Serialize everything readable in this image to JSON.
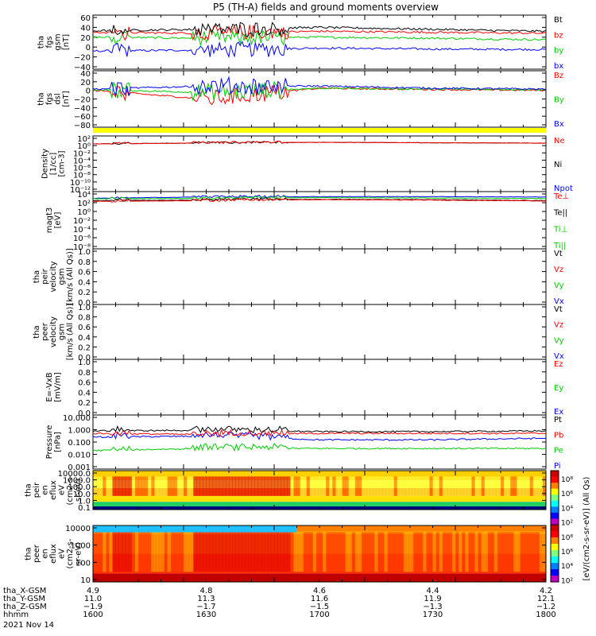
{
  "title": "P5 (TH-A) fields and ground moments overview",
  "date_label": "2021 Nov 14",
  "panels": [
    {
      "id": "fgs_gsm",
      "ylabel": [
        "tha",
        "fgs",
        "gsm",
        "[nT]"
      ],
      "ticks": [
        "60",
        "40",
        "20",
        "0",
        "−20",
        "−40"
      ],
      "legend": [
        {
          "text": "Bt",
          "color": "#000000"
        },
        {
          "text": "bz",
          "color": "#ff0000"
        },
        {
          "text": "by",
          "color": "#00cc00"
        },
        {
          "text": "bx",
          "color": "#0000ff"
        }
      ]
    },
    {
      "id": "fgs_dsl",
      "ylabel": [
        "tha",
        "fgs",
        "dsl",
        "[nT]"
      ],
      "ticks": [
        "40",
        "20",
        "0",
        "−20",
        "−40",
        "−60",
        "−80"
      ],
      "legend": [
        {
          "text": "Bz",
          "color": "#ff0000"
        },
        {
          "text": "By",
          "color": "#00cc00"
        },
        {
          "text": "Bx",
          "color": "#0000ff"
        }
      ]
    },
    {
      "id": "density",
      "ylabel": [
        "Density",
        "[1/cc]",
        "[cm-3]"
      ],
      "ticks": [
        "10²",
        "10⁰",
        "10⁻²",
        "10⁻⁴",
        "10⁻⁶",
        "10⁻⁸",
        "10⁻¹⁰",
        "10⁻¹²"
      ],
      "legend": [
        {
          "text": "Ne",
          "color": "#ff0000"
        },
        {
          "text": "Ni",
          "color": "#000000"
        },
        {
          "text": "Npot",
          "color": "#0000ff"
        }
      ]
    },
    {
      "id": "temperature",
      "ylabel": [
        "magt3",
        "[eV]"
      ],
      "ticks": [
        "10⁴",
        "10²",
        "10⁰",
        "10⁻²",
        "10⁻⁴",
        "10⁻⁶",
        "10⁻⁸"
      ],
      "legend": [
        {
          "text": "Te⊥",
          "color": "#ff0000"
        },
        {
          "text": "Te||",
          "color": "#000000"
        },
        {
          "text": "Ti⊥",
          "color": "#00cc00"
        },
        {
          "text": "Ti||",
          "color": "#00cc00"
        }
      ]
    },
    {
      "id": "peir_velocity",
      "ylabel": [
        "tha",
        "peir",
        "velocity",
        "gsm",
        "[km/s (All Qs)]"
      ],
      "ticks": [
        "1.0",
        "0.8",
        "0.6",
        "0.4",
        "0.2",
        "0.0"
      ],
      "legend": [
        {
          "text": "Vt",
          "color": "#000000"
        },
        {
          "text": "Vz",
          "color": "#ff0000"
        },
        {
          "text": "Vy",
          "color": "#00cc00"
        },
        {
          "text": "Vx",
          "color": "#0000ff"
        }
      ]
    },
    {
      "id": "peer_velocity",
      "ylabel": [
        "tha",
        "peer",
        "velocity",
        "gsm",
        "[km/s (All Qs)]"
      ],
      "ticks": [
        "1.0",
        "0.8",
        "0.6",
        "0.4",
        "0.2",
        "0.0"
      ],
      "legend": [
        {
          "text": "Vt",
          "color": "#000000"
        },
        {
          "text": "Vz",
          "color": "#ff0000"
        },
        {
          "text": "Vy",
          "color": "#00cc00"
        },
        {
          "text": "Vx",
          "color": "#0000ff"
        }
      ]
    },
    {
      "id": "efield",
      "ylabel": [
        "E=-VxB",
        "[mV/m]"
      ],
      "ticks": [
        "1.0",
        "0.8",
        "0.6",
        "0.4",
        "0.2",
        "0.0"
      ],
      "legend": [
        {
          "text": "Ez",
          "color": "#ff0000"
        },
        {
          "text": "Ey",
          "color": "#00cc00"
        },
        {
          "text": "Ex",
          "color": "#0000ff"
        }
      ]
    },
    {
      "id": "pressure",
      "ylabel": [
        "Pressure",
        "[nPa]"
      ],
      "ticks": [
        "10.000",
        "1.000",
        "0.100",
        "0.010",
        "0.001"
      ],
      "legend": [
        {
          "text": "Pt",
          "color": "#000000"
        },
        {
          "text": "Pb",
          "color": "#ff0000"
        },
        {
          "text": "Pe",
          "color": "#00cc00"
        },
        {
          "text": "Pi",
          "color": "#0000ff"
        }
      ]
    },
    {
      "id": "peir_spec",
      "ylabel": [
        "tha",
        "peir",
        "en",
        "eflux",
        "eV",
        "(cm2-s-",
        "sr-eV)"
      ],
      "ticks": [
        "10000.0",
        "1000.0",
        "100.0",
        "10.0",
        "1.0",
        "0.1"
      ],
      "legend": []
    },
    {
      "id": "peer_spec",
      "ylabel": [
        "tha",
        "peer",
        "en",
        "eflux",
        "eV",
        "(cm2-s-",
        "sr-eV)"
      ],
      "ticks": [
        "10000",
        "1000",
        "100",
        "10"
      ],
      "legend": []
    }
  ],
  "colorbar": {
    "ticks": [
      "10⁸",
      "10⁶",
      "10⁴",
      "10²",
      "10⁸",
      "10⁶",
      "10⁴",
      "10²"
    ],
    "label": "[eV/(cm2-s-sr-eV)] (All Qs)"
  },
  "x_axis": {
    "row_labels": [
      "tha_X-GSM",
      "tha_Y-GSM",
      "tha_Z-GSM",
      "hhmm"
    ],
    "columns": [
      [
        "4.9",
        "11.0",
        "−1.9",
        "1600"
      ],
      [
        "4.8",
        "11.3",
        "−1.7",
        "1630"
      ],
      [
        "4.6",
        "11.6",
        "−1.5",
        "1700"
      ],
      [
        "4.4",
        "11.9",
        "−1.3",
        "1730"
      ],
      [
        "4.2",
        "12.1",
        "−1.2",
        "1800"
      ]
    ]
  },
  "chart_data": {
    "type": "line",
    "title": "P5 (TH-A) fields and ground moments overview",
    "x": [
      "1600",
      "1630",
      "1700",
      "1730",
      "1800"
    ],
    "xlabel": "hhmm",
    "grid": false,
    "legend_placement": "right",
    "fgs_gsm": {
      "ylim": [
        -40,
        60
      ],
      "series": [
        {
          "name": "Bt",
          "values": [
            33,
            36,
            40,
            36,
            32
          ]
        },
        {
          "name": "bz",
          "values": [
            30,
            28,
            32,
            30,
            28
          ]
        },
        {
          "name": "by",
          "values": [
            20,
            18,
            20,
            18,
            15
          ]
        },
        {
          "name": "bx",
          "values": [
            -8,
            -6,
            -2,
            -4,
            -5
          ]
        }
      ]
    },
    "fgs_dsl": {
      "ylim": [
        -80,
        40
      ],
      "series": [
        {
          "name": "Bz",
          "values": [
            0,
            -20,
            5,
            2,
            0
          ]
        },
        {
          "name": "By",
          "values": [
            2,
            -5,
            5,
            3,
            2
          ]
        },
        {
          "name": "Bx",
          "values": [
            3,
            10,
            10,
            5,
            3
          ]
        }
      ]
    },
    "pressure": {
      "ylim": [
        0.001,
        10
      ],
      "log": true,
      "series": [
        {
          "name": "Pt",
          "values": [
            0.8,
            0.9,
            0.7,
            0.7,
            0.8
          ]
        },
        {
          "name": "Pb",
          "values": [
            0.5,
            0.4,
            0.5,
            0.5,
            0.5
          ]
        },
        {
          "name": "Pe",
          "values": [
            0.02,
            0.03,
            0.03,
            0.03,
            0.03
          ]
        },
        {
          "name": "Pi",
          "values": [
            0.25,
            0.3,
            0.15,
            0.15,
            0.2
          ]
        }
      ]
    }
  }
}
